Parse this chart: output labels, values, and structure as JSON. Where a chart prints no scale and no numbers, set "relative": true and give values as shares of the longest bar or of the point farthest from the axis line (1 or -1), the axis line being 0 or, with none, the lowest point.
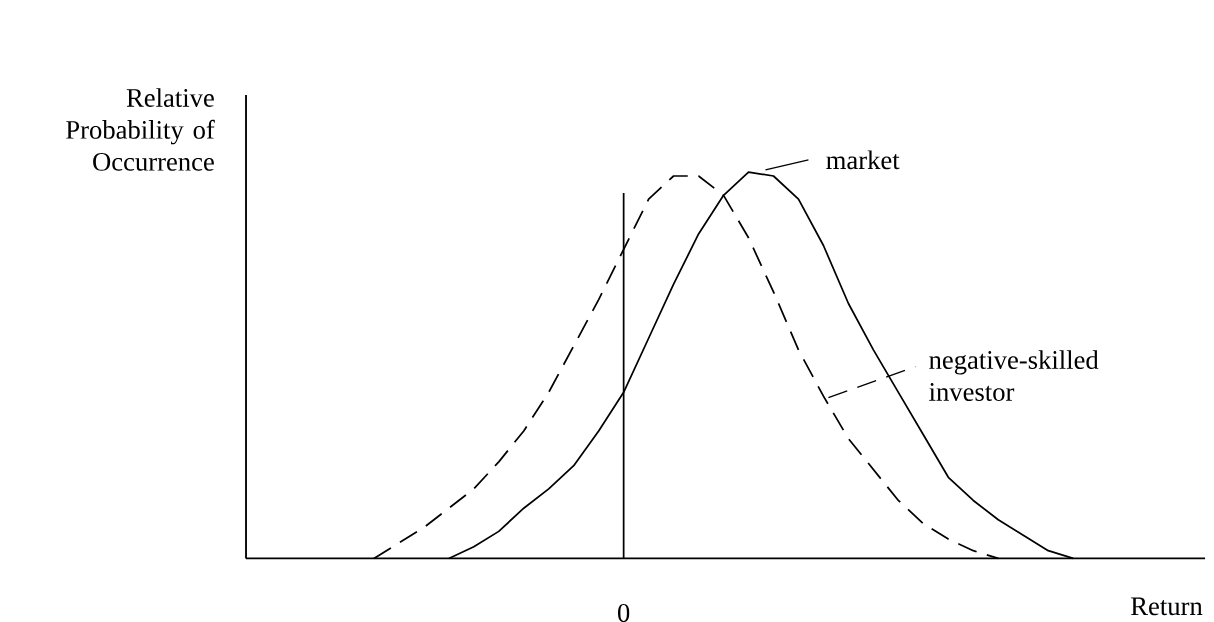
{
  "chart_data": {
    "type": "line",
    "relative": true,
    "xlabel": "Return",
    "ylabel": "Relative Probability of Occurrence",
    "categories": [
      null,
      null,
      null,
      null,
      null,
      null,
      null,
      null,
      null,
      null,
      null,
      null,
      null,
      null,
      null,
      null,
      null,
      null,
      null,
      null,
      null,
      null,
      null,
      null,
      null,
      null,
      null,
      null,
      null,
      null,
      null,
      null,
      null,
      null,
      null,
      null,
      null,
      null,
      null
    ],
    "series": [
      {
        "name": "market",
        "color": "#000000",
        "line_style": "solid",
        "values": [
          null,
          null,
          null,
          null,
          null,
          null,
          null,
          null,
          0,
          0.03,
          0.07,
          0.13,
          0.18,
          0.24,
          0.33,
          0.43,
          0.57,
          0.71,
          0.84,
          0.94,
          1,
          0.99,
          0.93,
          0.81,
          0.66,
          0.54,
          0.43,
          0.32,
          0.21,
          0.15,
          0.1,
          0.06,
          0.02,
          0,
          null,
          null,
          null,
          null,
          null
        ]
      },
      {
        "name": "negative-skilled investor",
        "color": "#000000",
        "line_style": "dashed",
        "values": [
          null,
          null,
          null,
          null,
          null,
          0,
          0.04,
          0.08,
          0.13,
          0.18,
          0.25,
          0.33,
          0.43,
          0.55,
          0.67,
          0.8,
          0.93,
          0.99,
          0.99,
          0.94,
          0.83,
          0.69,
          0.54,
          0.42,
          0.31,
          0.23,
          0.15,
          0.09,
          0.05,
          0.02,
          0,
          null,
          null,
          null,
          null,
          null,
          null,
          null,
          null
        ]
      }
    ],
    "legend": "right",
    "annotations": [
      "0"
    ]
  }
}
